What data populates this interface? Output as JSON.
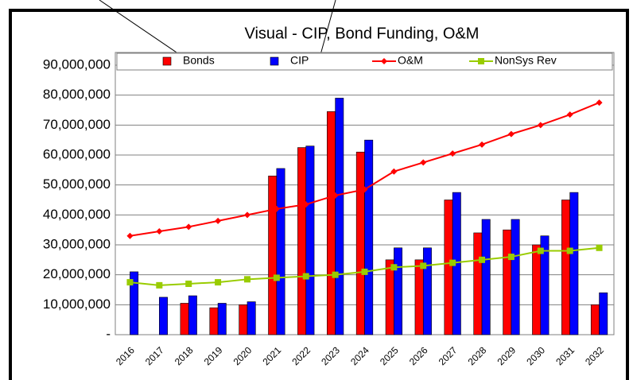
{
  "chart_data": {
    "type": "bar",
    "title": "Visual - CIP, Bond Funding, O&M",
    "categories": [
      "2016",
      "2017",
      "2018",
      "2019",
      "2020",
      "2021",
      "2022",
      "2023",
      "2024",
      "2025",
      "2026",
      "2027",
      "2028",
      "2029",
      "2030",
      "2031",
      "2032"
    ],
    "series": [
      {
        "name": "Bonds",
        "color": "#ff0000",
        "kind": "bar",
        "values": [
          0,
          0,
          10500000,
          9000000,
          10000000,
          53000000,
          62500000,
          74500000,
          61000000,
          25000000,
          25000000,
          45000000,
          34000000,
          35000000,
          30000000,
          45000000,
          10000000
        ]
      },
      {
        "name": "CIP",
        "color": "#0000ff",
        "kind": "bar",
        "values": [
          21000000,
          12500000,
          13000000,
          10500000,
          11000000,
          55500000,
          63000000,
          79000000,
          65000000,
          29000000,
          29000000,
          47500000,
          38500000,
          38500000,
          33000000,
          47500000,
          14000000
        ]
      },
      {
        "name": "O&M",
        "color": "#ff0000",
        "kind": "line",
        "values": [
          33000000,
          34500000,
          36000000,
          38000000,
          40000000,
          42000000,
          43500000,
          46500000,
          48500000,
          54500000,
          57500000,
          60500000,
          63500000,
          67000000,
          70000000,
          73500000,
          77500000
        ]
      },
      {
        "name": "NonSys Rev",
        "color": "#99cc00",
        "kind": "line",
        "values": [
          17500000,
          16500000,
          17000000,
          17500000,
          18500000,
          19000000,
          19500000,
          20000000,
          21000000,
          22500000,
          23000000,
          24000000,
          25000000,
          26000000,
          28000000,
          28000000,
          29000000
        ]
      }
    ],
    "ylim": [
      0,
      90000000
    ],
    "yticks": [
      {
        "value": 0,
        "label": "-"
      },
      {
        "value": 10000000,
        "label": "10,000,000"
      },
      {
        "value": 20000000,
        "label": "20,000,000"
      },
      {
        "value": 30000000,
        "label": "30,000,000"
      },
      {
        "value": 40000000,
        "label": "40,000,000"
      },
      {
        "value": 50000000,
        "label": "50,000,000"
      },
      {
        "value": 60000000,
        "label": "60,000,000"
      },
      {
        "value": 70000000,
        "label": "70,000,000"
      },
      {
        "value": 80000000,
        "label": "80,000,000"
      },
      {
        "value": 90000000,
        "label": "90,000,000"
      }
    ],
    "grid": true,
    "legend": "top"
  }
}
